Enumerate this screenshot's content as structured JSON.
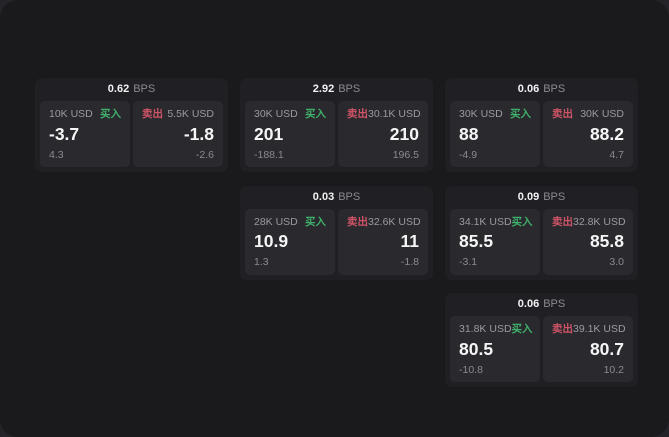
{
  "colors": {
    "background_outer": "#242428",
    "surface": "#1a1a1d",
    "card": "#202024",
    "panel": "#29292e",
    "text_primary": "#f5f5f6",
    "text_secondary": "#8a8a90",
    "buy_green": "#40b06a",
    "sell_red": "#cf5467"
  },
  "cards": [
    {
      "bps_value": "0.62",
      "bps_unit": "BPS",
      "buy": {
        "amount": "10K USD",
        "side_label": "买入",
        "price": "-3.7",
        "delta": "4.3"
      },
      "sell": {
        "side_label": "卖出",
        "amount": "5.5K USD",
        "price": "-1.8",
        "delta": "-2.6"
      }
    },
    {
      "bps_value": "2.92",
      "bps_unit": "BPS",
      "buy": {
        "amount": "30K USD",
        "side_label": "买入",
        "price": "201",
        "delta": "-188.1"
      },
      "sell": {
        "side_label": "卖出",
        "amount": "30.1K USD",
        "price": "210",
        "delta": "196.5"
      }
    },
    {
      "bps_value": "0.06",
      "bps_unit": "BPS",
      "buy": {
        "amount": "30K USD",
        "side_label": "买入",
        "price": "88",
        "delta": "-4.9"
      },
      "sell": {
        "side_label": "卖出",
        "amount": "30K USD",
        "price": "88.2",
        "delta": "4.7"
      }
    },
    {
      "bps_value": "0.03",
      "bps_unit": "BPS",
      "buy": {
        "amount": "28K USD",
        "side_label": "买入",
        "price": "10.9",
        "delta": "1.3"
      },
      "sell": {
        "side_label": "卖出",
        "amount": "32.6K USD",
        "price": "11",
        "delta": "-1.8"
      }
    },
    {
      "bps_value": "0.09",
      "bps_unit": "BPS",
      "buy": {
        "amount": "34.1K USD",
        "side_label": "买入",
        "price": "85.5",
        "delta": "-3.1"
      },
      "sell": {
        "side_label": "卖出",
        "amount": "32.8K USD",
        "price": "85.8",
        "delta": "3.0"
      }
    },
    {
      "bps_value": "0.06",
      "bps_unit": "BPS",
      "buy": {
        "amount": "31.8K USD",
        "side_label": "买入",
        "price": "80.5",
        "delta": "-10.8"
      },
      "sell": {
        "side_label": "卖出",
        "amount": "39.1K USD",
        "price": "80.7",
        "delta": "10.2"
      }
    }
  ]
}
